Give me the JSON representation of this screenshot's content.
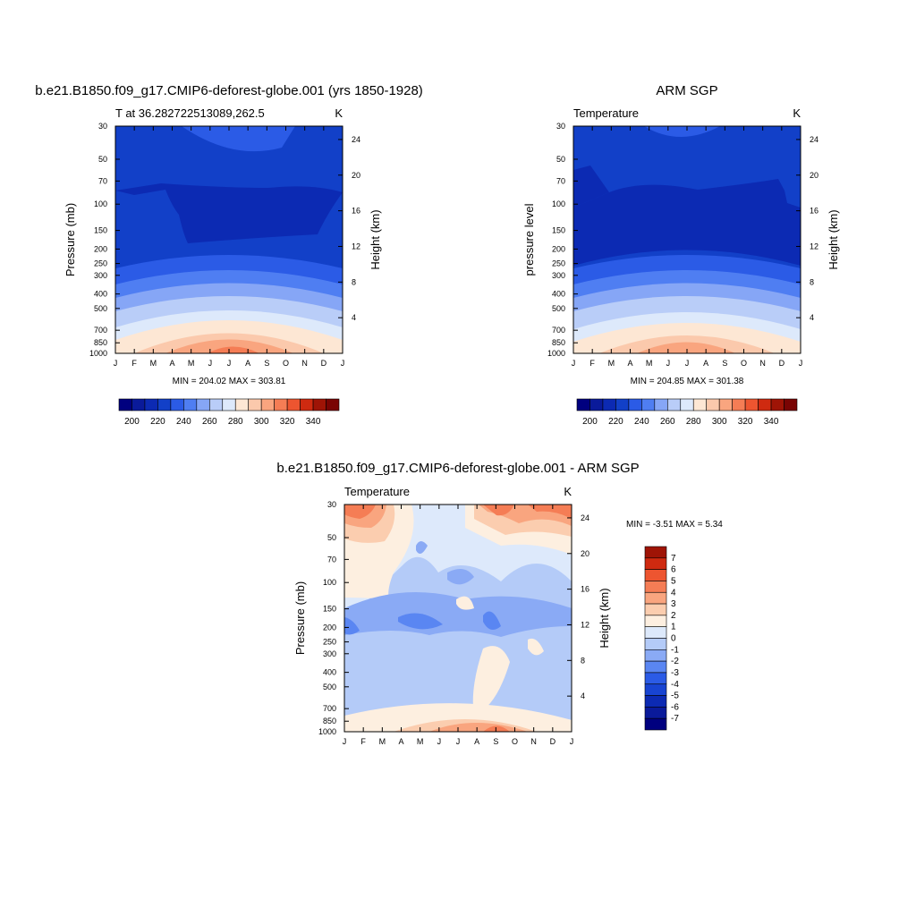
{
  "colors": {
    "levels_abs": [
      "#00007f",
      "#0a1a9a",
      "#0c2ab3",
      "#1240c8",
      "#2b5be6",
      "#4f7ef2",
      "#86a6f6",
      "#b9cdf8",
      "#dde9fb",
      "#fde7d4",
      "#fbc9ac",
      "#f9a57f",
      "#f57d55",
      "#ed5530",
      "#cf2a10",
      "#9f1406",
      "#7a0403"
    ],
    "levels_diff": [
      "#00007f",
      "#0a1a9a",
      "#0c2ab3",
      "#1844d2",
      "#2b5be6",
      "#5a86f2",
      "#8aaaf5",
      "#b4cbf8",
      "#dde9fb",
      "#fdefe0",
      "#fbcdaf",
      "#f9a57f",
      "#f57d55",
      "#ed5530",
      "#cf2a10",
      "#9f1406"
    ]
  },
  "panels": {
    "model": {
      "title": "b.e21.B1850.f09_g17.CMIP6-deforest-globe.001 (yrs 1850-1928)",
      "left_label": "T at 36.282722513089,262.5",
      "unit": "K",
      "ylabel": "Pressure (mb)",
      "ylabel_right": "Height (km)",
      "minmax": "MIN = 204.02 MAX = 303.81"
    },
    "obs": {
      "title": "ARM SGP",
      "left_label": "Temperature",
      "unit": "K",
      "ylabel": "pressure level",
      "ylabel_right": "Height (km)",
      "minmax": "MIN = 204.85 MAX = 301.38"
    },
    "diff": {
      "title": "b.e21.B1850.f09_g17.CMIP6-deforest-globe.001 - ARM SGP",
      "left_label": "Temperature",
      "unit": "K",
      "ylabel": "Pressure (mb)",
      "ylabel_right": "Height (km)",
      "minmax": "MIN =  -3.51 MAX =   5.34"
    }
  },
  "chart_data": [
    {
      "type": "heatmap",
      "title": "b.e21.B1850.f09_g17.CMIP6-deforest-globe.001 (yrs 1850-1928)",
      "x": [
        "J",
        "F",
        "M",
        "A",
        "M",
        "J",
        "J",
        "A",
        "S",
        "O",
        "N",
        "D",
        "J"
      ],
      "y_ticks": [
        30,
        50,
        70,
        100,
        150,
        200,
        250,
        300,
        400,
        500,
        700,
        850,
        1000
      ],
      "y_right_ticks": [
        24,
        20,
        16,
        12,
        8,
        4
      ],
      "ylabel": "Pressure (mb)",
      "colorbar_labels": [
        200,
        220,
        240,
        260,
        280,
        300,
        320,
        340
      ],
      "min": 204.02,
      "max": 303.81,
      "tropopause_min_temp_region": "dark blue 70-170 mb, Apr-Nov",
      "surface_max": "~300 K near 1000 mb in Jul"
    },
    {
      "type": "heatmap",
      "title": "ARM SGP",
      "x": [
        "J",
        "F",
        "M",
        "A",
        "M",
        "J",
        "J",
        "A",
        "S",
        "O",
        "N",
        "D",
        "J"
      ],
      "y_ticks": [
        30,
        50,
        70,
        100,
        150,
        200,
        250,
        300,
        400,
        500,
        700,
        850,
        1000
      ],
      "y_right_ticks": [
        24,
        20,
        16,
        12,
        8,
        4
      ],
      "ylabel": "pressure level",
      "colorbar_labels": [
        200,
        220,
        240,
        260,
        280,
        300,
        320,
        340
      ],
      "min": 204.85,
      "max": 301.38
    },
    {
      "type": "heatmap",
      "title": "b.e21.B1850.f09_g17.CMIP6-deforest-globe.001 - ARM SGP",
      "x": [
        "J",
        "F",
        "M",
        "A",
        "M",
        "J",
        "J",
        "A",
        "S",
        "O",
        "N",
        "D",
        "J"
      ],
      "y_ticks": [
        30,
        50,
        70,
        100,
        150,
        200,
        250,
        300,
        400,
        500,
        700,
        850,
        1000
      ],
      "y_right_ticks": [
        24,
        20,
        16,
        12,
        8,
        4
      ],
      "ylabel": "Pressure (mb)",
      "colorbar_labels": [
        7,
        6,
        5,
        4,
        3,
        2,
        1,
        0,
        -1,
        -2,
        -3,
        -4,
        -5,
        -6,
        -7
      ],
      "min": -3.51,
      "max": 5.34
    }
  ]
}
